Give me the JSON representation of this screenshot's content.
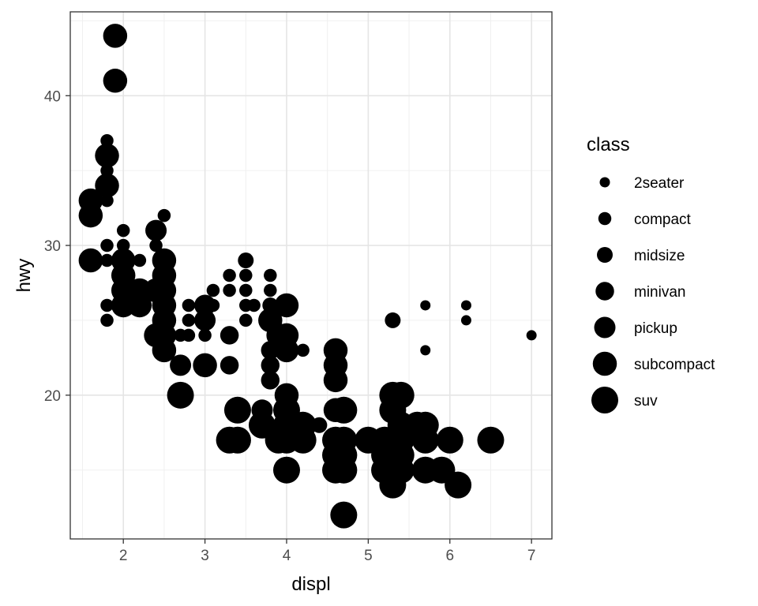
{
  "chart_data": {
    "type": "scatter",
    "title": "",
    "xlabel": "displ",
    "ylabel": "hwy",
    "xlim": [
      1.35,
      7.25
    ],
    "ylim": [
      10.4,
      45.6
    ],
    "x_ticks": [
      2,
      3,
      4,
      5,
      6,
      7
    ],
    "y_ticks": [
      20,
      30,
      40
    ],
    "grid": true,
    "theme": "bw",
    "point_color": "#000000",
    "size_variable": "class",
    "legend": {
      "title": "class",
      "position": "right",
      "entries": [
        "2seater",
        "compact",
        "midsize",
        "minivan",
        "pickup",
        "subcompact",
        "suv"
      ]
    },
    "points": [
      {
        "x": 1.9,
        "y": 44,
        "class": "subcompact"
      },
      {
        "x": 1.9,
        "y": 41,
        "class": "subcompact"
      },
      {
        "x": 1.8,
        "y": 37,
        "class": "compact"
      },
      {
        "x": 1.8,
        "y": 36,
        "class": "subcompact"
      },
      {
        "x": 1.8,
        "y": 35,
        "class": "compact"
      },
      {
        "x": 1.8,
        "y": 34,
        "class": "subcompact"
      },
      {
        "x": 1.8,
        "y": 33,
        "class": "compact"
      },
      {
        "x": 1.6,
        "y": 33,
        "class": "subcompact"
      },
      {
        "x": 1.6,
        "y": 32,
        "class": "subcompact"
      },
      {
        "x": 1.6,
        "y": 29,
        "class": "subcompact"
      },
      {
        "x": 1.8,
        "y": 29,
        "class": "compact"
      },
      {
        "x": 1.8,
        "y": 30,
        "class": "compact"
      },
      {
        "x": 1.8,
        "y": 26,
        "class": "compact"
      },
      {
        "x": 1.8,
        "y": 25,
        "class": "compact"
      },
      {
        "x": 2.0,
        "y": 31,
        "class": "compact"
      },
      {
        "x": 2.0,
        "y": 30,
        "class": "compact"
      },
      {
        "x": 2.0,
        "y": 29,
        "class": "subcompact"
      },
      {
        "x": 2.0,
        "y": 28,
        "class": "subcompact"
      },
      {
        "x": 2.0,
        "y": 27,
        "class": "subcompact"
      },
      {
        "x": 2.0,
        "y": 26,
        "class": "subcompact"
      },
      {
        "x": 2.2,
        "y": 29,
        "class": "compact"
      },
      {
        "x": 2.2,
        "y": 27,
        "class": "subcompact"
      },
      {
        "x": 2.2,
        "y": 26,
        "class": "subcompact"
      },
      {
        "x": 2.4,
        "y": 31,
        "class": "pickup"
      },
      {
        "x": 2.4,
        "y": 30,
        "class": "compact"
      },
      {
        "x": 2.5,
        "y": 32,
        "class": "compact"
      },
      {
        "x": 2.5,
        "y": 29,
        "class": "subcompact"
      },
      {
        "x": 2.5,
        "y": 28,
        "class": "subcompact"
      },
      {
        "x": 2.5,
        "y": 27,
        "class": "subcompact"
      },
      {
        "x": 2.5,
        "y": 26,
        "class": "subcompact"
      },
      {
        "x": 2.5,
        "y": 25,
        "class": "subcompact"
      },
      {
        "x": 2.4,
        "y": 27,
        "class": "subcompact"
      },
      {
        "x": 2.4,
        "y": 24,
        "class": "subcompact"
      },
      {
        "x": 2.5,
        "y": 24,
        "class": "subcompact"
      },
      {
        "x": 2.5,
        "y": 23,
        "class": "subcompact"
      },
      {
        "x": 2.7,
        "y": 24,
        "class": "compact"
      },
      {
        "x": 2.8,
        "y": 26,
        "class": "compact"
      },
      {
        "x": 2.8,
        "y": 25,
        "class": "compact"
      },
      {
        "x": 2.8,
        "y": 24,
        "class": "compact"
      },
      {
        "x": 2.7,
        "y": 22,
        "class": "pickup"
      },
      {
        "x": 2.7,
        "y": 20,
        "class": "suv"
      },
      {
        "x": 3.0,
        "y": 26,
        "class": "pickup"
      },
      {
        "x": 3.0,
        "y": 25,
        "class": "pickup"
      },
      {
        "x": 3.0,
        "y": 24,
        "class": "compact"
      },
      {
        "x": 3.0,
        "y": 22,
        "class": "subcompact"
      },
      {
        "x": 3.1,
        "y": 27,
        "class": "compact"
      },
      {
        "x": 3.1,
        "y": 26,
        "class": "compact"
      },
      {
        "x": 3.3,
        "y": 28,
        "class": "compact"
      },
      {
        "x": 3.3,
        "y": 27,
        "class": "compact"
      },
      {
        "x": 3.3,
        "y": 24,
        "class": "minivan"
      },
      {
        "x": 3.3,
        "y": 22,
        "class": "minivan"
      },
      {
        "x": 3.3,
        "y": 17,
        "class": "suv"
      },
      {
        "x": 3.4,
        "y": 19,
        "class": "suv"
      },
      {
        "x": 3.4,
        "y": 17,
        "class": "suv"
      },
      {
        "x": 3.5,
        "y": 29,
        "class": "midsize"
      },
      {
        "x": 3.5,
        "y": 28,
        "class": "compact"
      },
      {
        "x": 3.5,
        "y": 27,
        "class": "compact"
      },
      {
        "x": 3.5,
        "y": 26,
        "class": "compact"
      },
      {
        "x": 3.5,
        "y": 25,
        "class": "compact"
      },
      {
        "x": 3.6,
        "y": 26,
        "class": "compact"
      },
      {
        "x": 3.7,
        "y": 19,
        "class": "pickup"
      },
      {
        "x": 3.7,
        "y": 18,
        "class": "suv"
      },
      {
        "x": 3.8,
        "y": 28,
        "class": "compact"
      },
      {
        "x": 3.8,
        "y": 27,
        "class": "compact"
      },
      {
        "x": 3.8,
        "y": 26,
        "class": "midsize"
      },
      {
        "x": 3.8,
        "y": 25,
        "class": "subcompact"
      },
      {
        "x": 3.8,
        "y": 23,
        "class": "minivan"
      },
      {
        "x": 3.8,
        "y": 22,
        "class": "minivan"
      },
      {
        "x": 3.8,
        "y": 21,
        "class": "minivan"
      },
      {
        "x": 3.9,
        "y": 24,
        "class": "subcompact"
      },
      {
        "x": 3.9,
        "y": 17,
        "class": "suv"
      },
      {
        "x": 4.0,
        "y": 26,
        "class": "subcompact"
      },
      {
        "x": 4.0,
        "y": 24,
        "class": "subcompact"
      },
      {
        "x": 4.0,
        "y": 23,
        "class": "subcompact"
      },
      {
        "x": 4.0,
        "y": 20,
        "class": "subcompact"
      },
      {
        "x": 4.0,
        "y": 19,
        "class": "suv"
      },
      {
        "x": 4.0,
        "y": 18,
        "class": "suv"
      },
      {
        "x": 4.0,
        "y": 17,
        "class": "suv"
      },
      {
        "x": 4.0,
        "y": 15,
        "class": "suv"
      },
      {
        "x": 4.2,
        "y": 23,
        "class": "compact"
      },
      {
        "x": 4.2,
        "y": 18,
        "class": "suv"
      },
      {
        "x": 4.2,
        "y": 17,
        "class": "suv"
      },
      {
        "x": 4.4,
        "y": 18,
        "class": "midsize"
      },
      {
        "x": 4.6,
        "y": 23,
        "class": "subcompact"
      },
      {
        "x": 4.6,
        "y": 22,
        "class": "subcompact"
      },
      {
        "x": 4.6,
        "y": 21,
        "class": "subcompact"
      },
      {
        "x": 4.6,
        "y": 19,
        "class": "subcompact"
      },
      {
        "x": 4.6,
        "y": 17,
        "class": "suv"
      },
      {
        "x": 4.6,
        "y": 16,
        "class": "suv"
      },
      {
        "x": 4.6,
        "y": 15,
        "class": "suv"
      },
      {
        "x": 4.7,
        "y": 19,
        "class": "suv"
      },
      {
        "x": 4.7,
        "y": 17,
        "class": "suv"
      },
      {
        "x": 4.7,
        "y": 16,
        "class": "suv"
      },
      {
        "x": 4.7,
        "y": 15,
        "class": "suv"
      },
      {
        "x": 4.7,
        "y": 12,
        "class": "suv"
      },
      {
        "x": 5.0,
        "y": 17,
        "class": "suv"
      },
      {
        "x": 5.2,
        "y": 17,
        "class": "suv"
      },
      {
        "x": 5.2,
        "y": 16,
        "class": "suv"
      },
      {
        "x": 5.2,
        "y": 15,
        "class": "suv"
      },
      {
        "x": 5.3,
        "y": 25,
        "class": "midsize"
      },
      {
        "x": 5.3,
        "y": 20,
        "class": "suv"
      },
      {
        "x": 5.3,
        "y": 19,
        "class": "suv"
      },
      {
        "x": 5.3,
        "y": 17,
        "class": "suv"
      },
      {
        "x": 5.3,
        "y": 16,
        "class": "suv"
      },
      {
        "x": 5.3,
        "y": 15,
        "class": "suv"
      },
      {
        "x": 5.3,
        "y": 14,
        "class": "suv"
      },
      {
        "x": 5.4,
        "y": 20,
        "class": "suv"
      },
      {
        "x": 5.4,
        "y": 18,
        "class": "suv"
      },
      {
        "x": 5.4,
        "y": 17,
        "class": "suv"
      },
      {
        "x": 5.4,
        "y": 16,
        "class": "suv"
      },
      {
        "x": 5.4,
        "y": 15,
        "class": "suv"
      },
      {
        "x": 5.6,
        "y": 18,
        "class": "suv"
      },
      {
        "x": 5.7,
        "y": 26,
        "class": "2seater"
      },
      {
        "x": 5.7,
        "y": 23,
        "class": "2seater"
      },
      {
        "x": 5.7,
        "y": 18,
        "class": "suv"
      },
      {
        "x": 5.7,
        "y": 17,
        "class": "suv"
      },
      {
        "x": 5.7,
        "y": 15,
        "class": "suv"
      },
      {
        "x": 5.9,
        "y": 15,
        "class": "suv"
      },
      {
        "x": 6.0,
        "y": 17,
        "class": "suv"
      },
      {
        "x": 6.1,
        "y": 14,
        "class": "suv"
      },
      {
        "x": 6.2,
        "y": 26,
        "class": "2seater"
      },
      {
        "x": 6.2,
        "y": 25,
        "class": "2seater"
      },
      {
        "x": 6.5,
        "y": 17,
        "class": "suv"
      },
      {
        "x": 7.0,
        "y": 24,
        "class": "2seater"
      }
    ]
  }
}
